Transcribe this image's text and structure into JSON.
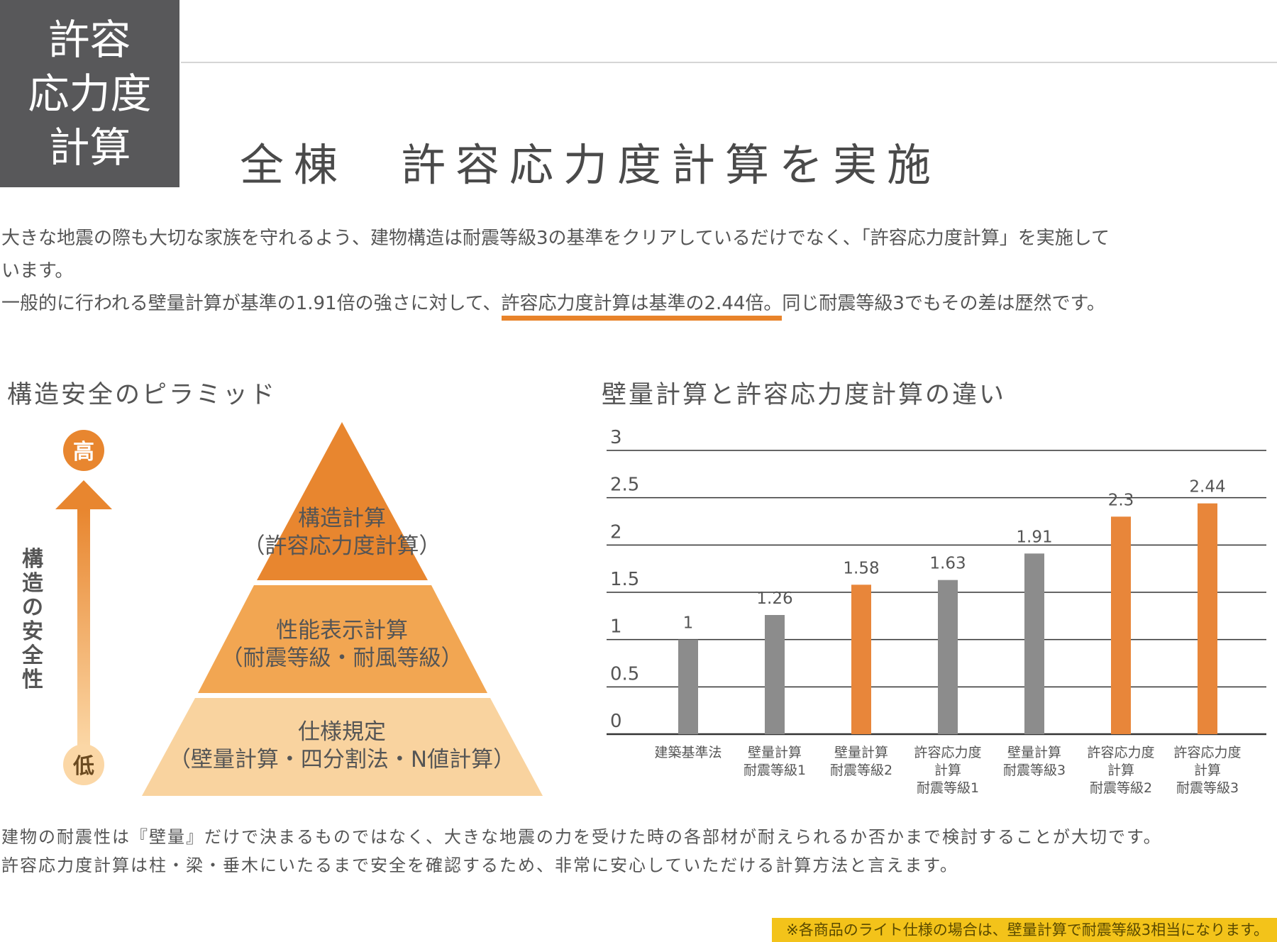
{
  "title_box": {
    "lines": [
      "許容",
      "応力度",
      "計算"
    ]
  },
  "heading": "全棟　許容応力度計算を実施",
  "intro": {
    "line1": "大きな地震の際も大切な家族を守れるよう、建物構造は耐震等級3の基準をクリアしているだけでなく、「許容応力度計算」を実施して",
    "line2": "います。",
    "line3_pre": "一般的に行われる壁量計算が基準の1.91倍の強さに対して、",
    "line3_highlight": "許容応力度計算は基準の2.44倍。",
    "line3_post": "同じ耐震等級3でもその差は歴然です。"
  },
  "pyramid": {
    "title": "構造安全のピラミッド",
    "arrow_high": "高",
    "arrow_low": "低",
    "axis_label": "構造の安全性",
    "tiers": [
      {
        "line1": "構造計算",
        "line2": "（許容応力度計算）",
        "color": "#e8862f"
      },
      {
        "line1": "性能表示計算",
        "line2": "（耐震等級・耐風等級）",
        "color": "#f2a652"
      },
      {
        "line1": "仕様規定",
        "line2": "（壁量計算・四分割法・N値計算）",
        "color": "#f9d39f"
      }
    ],
    "arrow_color": "#e8862f"
  },
  "chart_title": "壁量計算と許容応力度計算の違い",
  "chart_data": {
    "type": "bar",
    "title": "壁量計算と許容応力度計算の違い",
    "xlabel": "",
    "ylabel": "",
    "ylim": [
      0,
      3
    ],
    "yticks": [
      "0",
      "0.5",
      "1",
      "1.5",
      "2",
      "2.5",
      "3"
    ],
    "grid": true,
    "categories": [
      [
        "建築基準法"
      ],
      [
        "壁量計算",
        "耐震等級1"
      ],
      [
        "壁量計算",
        "耐震等級2"
      ],
      [
        "許容応力度",
        "計算",
        "耐震等級1"
      ],
      [
        "壁量計算",
        "耐震等級3"
      ],
      [
        "許容応力度",
        "計算",
        "耐震等級2"
      ],
      [
        "許容応力度",
        "計算",
        "耐震等級3"
      ]
    ],
    "values": [
      1,
      1.26,
      1.58,
      1.63,
      1.91,
      2.3,
      2.44
    ],
    "value_labels": [
      "1",
      "1.26",
      "1.58",
      "1.63",
      "1.91",
      "2.3",
      "2.44"
    ],
    "bar_colors": [
      "#8c8c8c",
      "#8c8c8c",
      "#e8863a",
      "#8c8c8c",
      "#8c8c8c",
      "#e8863a",
      "#e8863a"
    ]
  },
  "footer": {
    "line1": "建物の耐震性は『壁量』だけで決まるものではなく、大きな地震の力を受けた時の各部材が耐えられるか否かまで検討することが大切です。",
    "line2": "許容応力度計算は柱・梁・垂木にいたるまで安全を確認するため、非常に安心していただける計算方法と言えます。"
  },
  "footnote": "※各商品のライト仕様の場合は、壁量計算で耐震等級3相当になります。"
}
